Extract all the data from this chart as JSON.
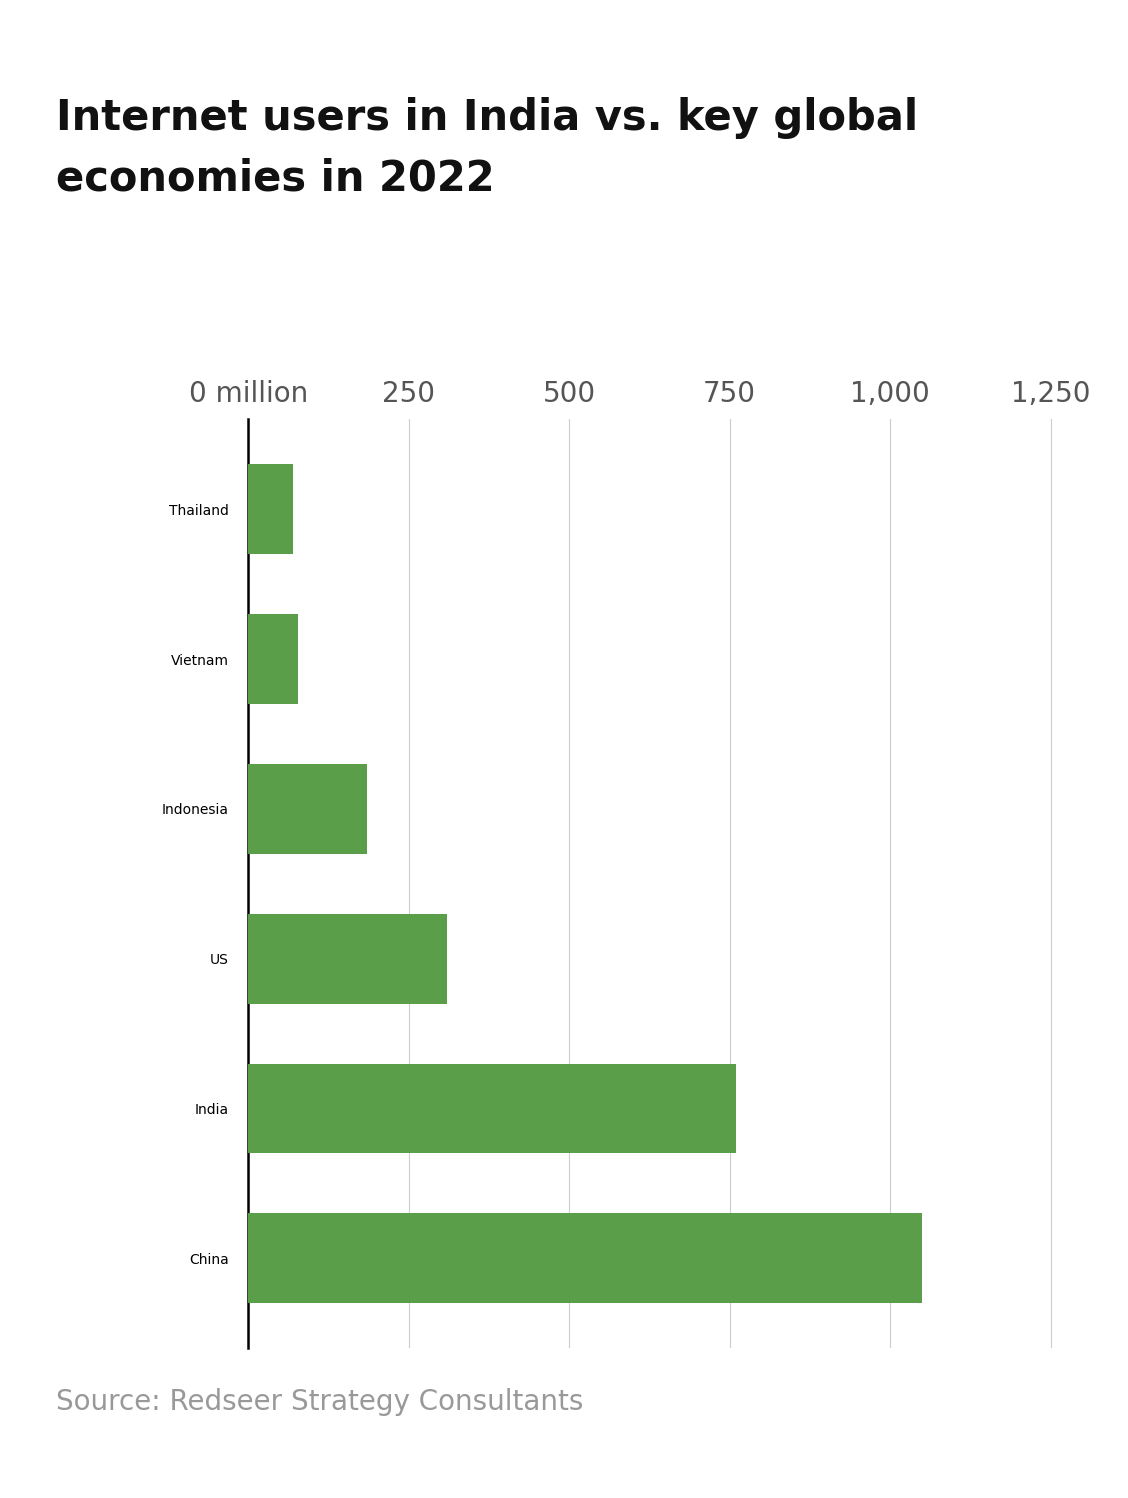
{
  "title_line1": "Internet users in India vs. key global",
  "title_line2": "economies in 2022",
  "categories": [
    "China",
    "India",
    "US",
    "Indonesia",
    "Vietnam",
    "Thailand"
  ],
  "values": [
    1050,
    760,
    310,
    185,
    77,
    70
  ],
  "bar_color": "#5a9e4a",
  "background_color": "#ffffff",
  "xlim": [
    0,
    1300
  ],
  "xticks": [
    0,
    250,
    500,
    750,
    1000,
    1250
  ],
  "xticklabels": [
    "0 million",
    "250",
    "500",
    "750",
    "1,000",
    "1,250"
  ],
  "source": "Source: Redseer Strategy Consultants",
  "title_fontsize": 30,
  "label_fontsize": 26,
  "tick_fontsize": 20,
  "source_fontsize": 20
}
